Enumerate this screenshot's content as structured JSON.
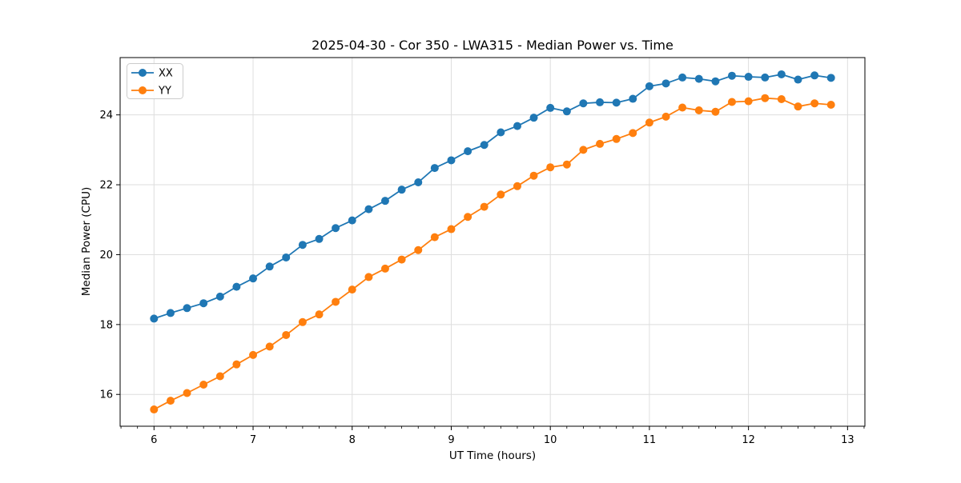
{
  "chart_data": {
    "type": "line",
    "title": "2025-04-30 - Cor 350 - LWA315 - Median Power vs. Time",
    "xlabel": "UT Time (hours)",
    "ylabel": "Median Power (CPU)",
    "xlim": [
      5.658,
      13.175
    ],
    "ylim": [
      15.09,
      25.64
    ],
    "x_major_ticks": [
      6,
      7,
      8,
      9,
      10,
      11,
      12,
      13
    ],
    "y_major_ticks": [
      16,
      18,
      20,
      22,
      24
    ],
    "x_minor_ticks_per_major": 6,
    "grid": true,
    "grid_color": "#dedede",
    "background_color": "#ffffff",
    "spine_color": "#000000",
    "legend_position": "upper left",
    "marker": "circle",
    "x": [
      6.0,
      6.167,
      6.333,
      6.5,
      6.667,
      6.833,
      7.0,
      7.167,
      7.333,
      7.5,
      7.667,
      7.833,
      8.0,
      8.167,
      8.333,
      8.5,
      8.667,
      8.833,
      9.0,
      9.167,
      9.333,
      9.5,
      9.667,
      9.833,
      10.0,
      10.167,
      10.333,
      10.5,
      10.667,
      10.833,
      11.0,
      11.167,
      11.333,
      11.5,
      11.667,
      11.833,
      12.0,
      12.167,
      12.333,
      12.5,
      12.667,
      12.833
    ],
    "series": [
      {
        "name": "XX",
        "color": "#1f77b4",
        "values": [
          18.17,
          18.33,
          18.47,
          18.61,
          18.8,
          19.08,
          19.32,
          19.66,
          19.92,
          20.28,
          20.45,
          20.76,
          20.98,
          21.3,
          21.54,
          21.86,
          22.07,
          22.48,
          22.7,
          22.96,
          23.14,
          23.5,
          23.68,
          23.92,
          24.2,
          24.1,
          24.33,
          24.36,
          24.35,
          24.46,
          24.82,
          24.9,
          25.07,
          25.03,
          24.96,
          25.12,
          25.09,
          25.07,
          25.16,
          25.01,
          25.13,
          25.06
        ]
      },
      {
        "name": "YY",
        "color": "#ff7f0e",
        "values": [
          15.57,
          15.82,
          16.04,
          16.28,
          16.52,
          16.86,
          17.13,
          17.37,
          17.7,
          18.07,
          18.29,
          18.65,
          19.0,
          19.36,
          19.6,
          19.86,
          20.13,
          20.5,
          20.73,
          21.08,
          21.37,
          21.72,
          21.96,
          22.26,
          22.5,
          22.58,
          23.0,
          23.17,
          23.31,
          23.48,
          23.78,
          23.95,
          24.21,
          24.13,
          24.09,
          24.37,
          24.39,
          24.48,
          24.45,
          24.24,
          24.33,
          24.29
        ]
      }
    ]
  }
}
